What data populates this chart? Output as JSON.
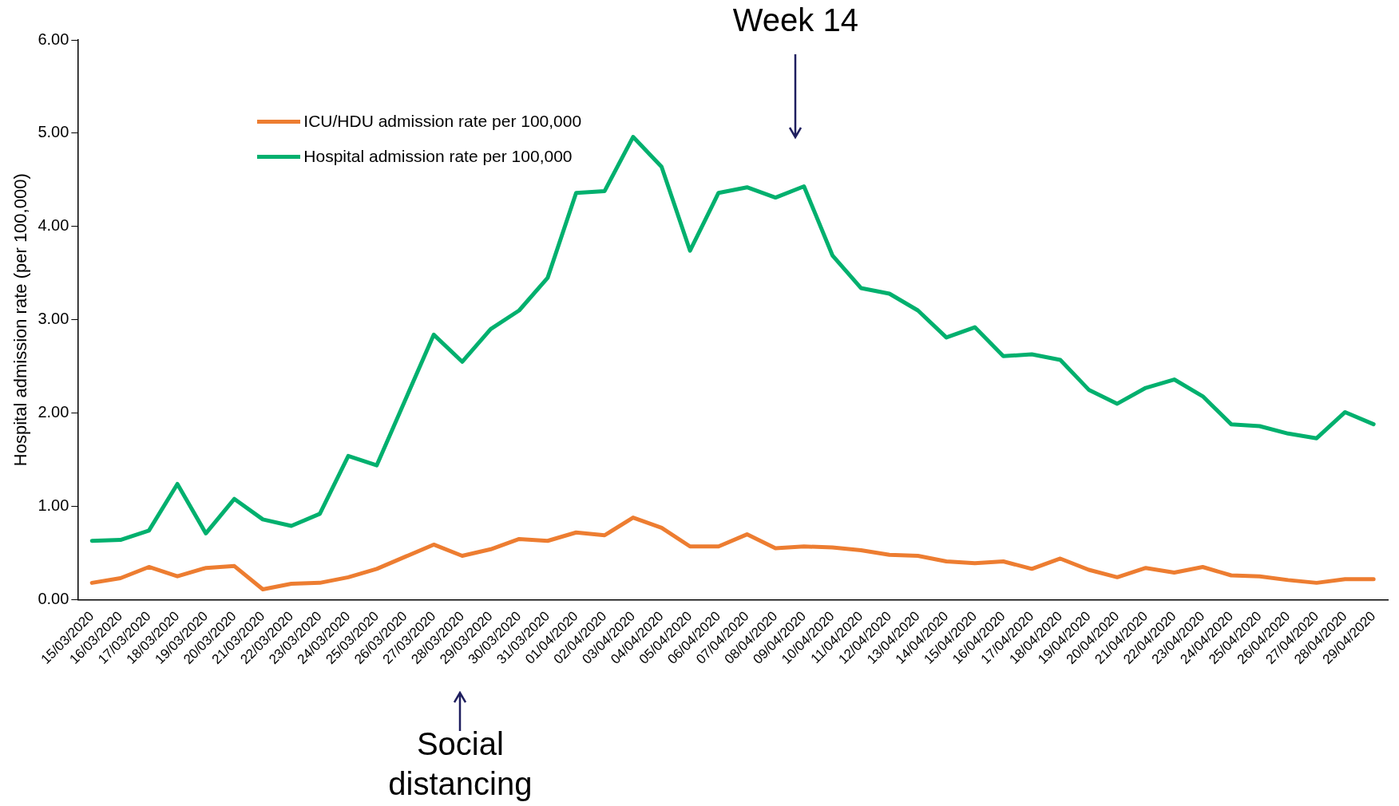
{
  "chart_data": {
    "type": "line",
    "ylabel": "Hospital admission rate (per 100,000)",
    "categories": [
      "15/03/2020",
      "16/03/2020",
      "17/03/2020",
      "18/03/2020",
      "19/03/2020",
      "20/03/2020",
      "21/03/2020",
      "22/03/2020",
      "23/03/2020",
      "24/03/2020",
      "25/03/2020",
      "26/03/2020",
      "27/03/2020",
      "28/03/2020",
      "29/03/2020",
      "30/03/2020",
      "31/03/2020",
      "01/04/2020",
      "02/04/2020",
      "03/04/2020",
      "04/04/2020",
      "05/04/2020",
      "06/04/2020",
      "07/04/2020",
      "08/04/2020",
      "09/04/2020",
      "10/04/2020",
      "11/04/2020",
      "12/04/2020",
      "13/04/2020",
      "14/04/2020",
      "15/04/2020",
      "16/04/2020",
      "17/04/2020",
      "18/04/2020",
      "19/04/2020",
      "20/04/2020",
      "21/04/2020",
      "22/04/2020",
      "23/04/2020",
      "24/04/2020",
      "25/04/2020",
      "26/04/2020",
      "27/04/2020",
      "28/04/2020",
      "29/04/2020"
    ],
    "series": [
      {
        "name": "ICU/HDU admission rate per 100,000",
        "color": "#ed7d31",
        "values": [
          0.18,
          0.23,
          0.35,
          0.25,
          0.34,
          0.36,
          0.11,
          0.17,
          0.18,
          0.24,
          0.33,
          0.46,
          0.59,
          0.47,
          0.54,
          0.65,
          0.63,
          0.72,
          0.69,
          0.88,
          0.77,
          0.57,
          0.57,
          0.7,
          0.55,
          0.57,
          0.56,
          0.53,
          0.48,
          0.47,
          0.41,
          0.39,
          0.41,
          0.33,
          0.44,
          0.32,
          0.24,
          0.34,
          0.29,
          0.35,
          0.26,
          0.25,
          0.21,
          0.18,
          0.22,
          0.22
        ]
      },
      {
        "name": "Hospital admission rate per 100,000",
        "color": "#00b06e",
        "values": [
          0.63,
          0.64,
          0.74,
          1.24,
          0.71,
          1.08,
          0.86,
          0.79,
          0.92,
          1.54,
          1.44,
          2.14,
          2.84,
          2.55,
          2.9,
          3.1,
          3.45,
          4.36,
          4.38,
          4.96,
          4.64,
          3.74,
          4.36,
          4.42,
          4.31,
          4.43,
          3.69,
          3.34,
          3.28,
          3.1,
          2.81,
          2.92,
          2.61,
          2.63,
          2.57,
          2.25,
          2.1,
          2.27,
          2.36,
          2.18,
          1.88,
          1.86,
          1.78,
          1.73,
          2.01,
          1.88
        ]
      }
    ],
    "ylim": [
      0,
      6
    ],
    "yticks": [
      {
        "value": 0,
        "label": "0.00"
      },
      {
        "value": 1,
        "label": "1.00"
      },
      {
        "value": 2,
        "label": "2.00"
      },
      {
        "value": 3,
        "label": "3.00"
      },
      {
        "value": 4,
        "label": "4.00"
      },
      {
        "value": 5,
        "label": "5.00"
      },
      {
        "value": 6,
        "label": "6.00"
      }
    ],
    "annotations": [
      "Week 14",
      "Social distancing"
    ],
    "legend": "top left",
    "grid": false,
    "marker": "none",
    "line_style": "solid"
  }
}
